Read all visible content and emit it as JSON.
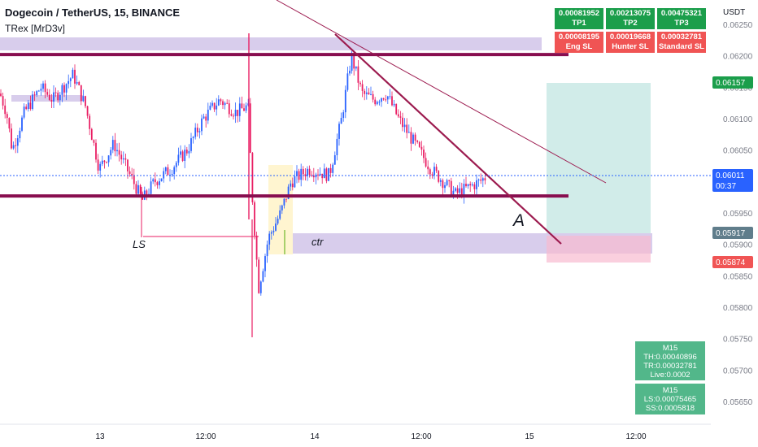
{
  "header": {
    "title": "Dogecoin / TetherUS, 15, BINANCE",
    "indicator": "TRex [MrD3v]"
  },
  "targets": {
    "rows": [
      [
        {
          "value": "0.00081952",
          "label": "TP1"
        },
        {
          "value": "0.00213075",
          "label": "TP2"
        },
        {
          "value": "0.00475321",
          "label": "TP3"
        }
      ],
      [
        {
          "value": "0.00008195",
          "label": "Eng SL"
        },
        {
          "value": "0.00019668",
          "label": "Hunter SL"
        },
        {
          "value": "0.00032781",
          "label": "Standard SL"
        }
      ]
    ]
  },
  "info_panel": {
    "box1": [
      "M15",
      "TH:0.00040896",
      "TR:0.00032781",
      "Live:0.0002"
    ],
    "box2": [
      "M15",
      "LS:0.00075465",
      "SS:0.0005818"
    ]
  },
  "colors": {
    "up": "#2962ff",
    "down": "#e91e63",
    "level_line": "#880e4f",
    "zone_fill": "#d1c4e9",
    "tp_box": "#b2dfdb",
    "sl_box": "#f8bbd0",
    "current_price": "#2962ff",
    "entry_tag": "#607d8b",
    "target_tag": "#1b9e4b",
    "stop_tag": "#f05454"
  },
  "chart_data": {
    "type": "candlestick",
    "title": "Dogecoin / TetherUS, 15, BINANCE",
    "y_axis_label": "USDT",
    "y_ticks": [
      "0.06250",
      "0.06200",
      "0.06150",
      "0.06100",
      "0.06050",
      "0.06000",
      "0.05950",
      "0.05900",
      "0.05850",
      "0.05800",
      "0.05750",
      "0.05700",
      "0.05650"
    ],
    "x_ticks": [
      "13",
      "12:00",
      "14",
      "12:00",
      "15",
      "12:00"
    ],
    "ylim": [
      0.0563,
      0.0627
    ],
    "price_tags": {
      "target": "0.06157",
      "current": "0.06011",
      "countdown": "00:37",
      "entry": "0.05917",
      "stop": "0.05874"
    },
    "levels": [
      0.06202,
      0.05977
    ],
    "zone_labels": {
      "left_low": "LS",
      "zone": "ctr",
      "point": "A"
    },
    "price_path": [
      [
        0,
        0.0614
      ],
      [
        8,
        0.0611
      ],
      [
        15,
        0.0605
      ],
      [
        30,
        0.0611
      ],
      [
        50,
        0.0615
      ],
      [
        65,
        0.0613
      ],
      [
        90,
        0.0617
      ],
      [
        105,
        0.0612
      ],
      [
        122,
        0.0602
      ],
      [
        140,
        0.0606
      ],
      [
        160,
        0.0601
      ],
      [
        175,
        0.0597
      ],
      [
        190,
        0.06
      ],
      [
        210,
        0.0602
      ],
      [
        230,
        0.0605
      ],
      [
        250,
        0.061
      ],
      [
        270,
        0.0613
      ],
      [
        290,
        0.0611
      ],
      [
        305,
        0.0612
      ],
      [
        310,
        0.0598
      ],
      [
        318,
        0.0583
      ],
      [
        330,
        0.0591
      ],
      [
        345,
        0.0595
      ],
      [
        358,
        0.06
      ],
      [
        380,
        0.0602
      ],
      [
        405,
        0.0601
      ],
      [
        420,
        0.061
      ],
      [
        432,
        0.062
      ],
      [
        445,
        0.0614
      ],
      [
        460,
        0.0613
      ],
      [
        475,
        0.0614
      ],
      [
        490,
        0.061
      ],
      [
        510,
        0.0606
      ],
      [
        530,
        0.0602
      ],
      [
        545,
        0.06
      ],
      [
        560,
        0.0598
      ],
      [
        575,
        0.0599
      ],
      [
        590,
        0.06
      ],
      [
        600,
        0.0601
      ]
    ]
  }
}
